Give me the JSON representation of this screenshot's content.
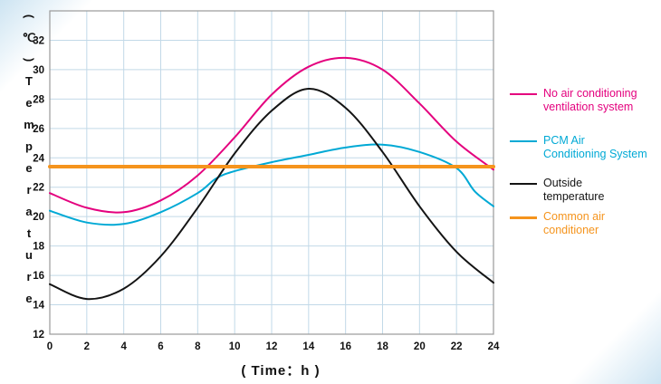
{
  "chart_data": {
    "type": "line",
    "title": "",
    "xlabel": "( Time：h )",
    "ylabel": "(℃)Temperature",
    "xlim": [
      0,
      24
    ],
    "ylim": [
      12,
      34
    ],
    "x_ticks": [
      0,
      2,
      4,
      6,
      8,
      10,
      12,
      14,
      16,
      18,
      20,
      22,
      24
    ],
    "y_ticks": [
      12,
      14,
      16,
      18,
      20,
      22,
      24,
      26,
      28,
      30,
      32
    ],
    "grid": true,
    "legend_position": "right",
    "series": [
      {
        "name": "No air conditioning ventilation system",
        "color": "#e4017e",
        "width": 2,
        "points": [
          [
            0,
            21.6
          ],
          [
            2,
            20.6
          ],
          [
            4,
            20.3
          ],
          [
            6,
            21.1
          ],
          [
            8,
            22.8
          ],
          [
            10,
            25.4
          ],
          [
            12,
            28.3
          ],
          [
            14,
            30.2
          ],
          [
            16,
            30.8
          ],
          [
            18,
            30.0
          ],
          [
            20,
            27.7
          ],
          [
            22,
            25.1
          ],
          [
            24,
            23.2
          ]
        ]
      },
      {
        "name": "PCM Air Conditioning System",
        "color": "#00a9d5",
        "width": 2,
        "points": [
          [
            0,
            20.4
          ],
          [
            2,
            19.6
          ],
          [
            4,
            19.5
          ],
          [
            6,
            20.3
          ],
          [
            8,
            21.6
          ],
          [
            9,
            22.6
          ],
          [
            10,
            23.1
          ],
          [
            12,
            23.7
          ],
          [
            14,
            24.2
          ],
          [
            16,
            24.7
          ],
          [
            18,
            24.9
          ],
          [
            20,
            24.4
          ],
          [
            22,
            23.3
          ],
          [
            23,
            21.7
          ],
          [
            24,
            20.7
          ]
        ]
      },
      {
        "name": "Outside temperature",
        "color": "#141414",
        "width": 2,
        "points": [
          [
            0,
            15.4
          ],
          [
            2,
            14.4
          ],
          [
            4,
            15.1
          ],
          [
            6,
            17.3
          ],
          [
            8,
            20.6
          ],
          [
            10,
            24.3
          ],
          [
            12,
            27.2
          ],
          [
            14,
            28.7
          ],
          [
            16,
            27.4
          ],
          [
            18,
            24.4
          ],
          [
            20,
            20.7
          ],
          [
            22,
            17.6
          ],
          [
            24,
            15.5
          ]
        ]
      },
      {
        "name": "Common air conditioner",
        "color": "#f5941d",
        "width": 4,
        "points": [
          [
            0,
            23.4
          ],
          [
            24,
            23.4
          ]
        ]
      }
    ]
  },
  "legend": {
    "items": [
      {
        "label": "No air conditioning\nventilation system",
        "color": "#e4017e"
      },
      {
        "label": "PCM Air\nConditioning System",
        "color": "#00a9d5"
      },
      {
        "label": "Outside\ntemperature",
        "color": "#141414"
      },
      {
        "label": "Common air\nconditioner",
        "color": "#f5941d"
      }
    ]
  },
  "colors": {
    "grid": "#c2d9e8",
    "axis_border": "#9a9a9a",
    "tick_text": "#111111"
  }
}
